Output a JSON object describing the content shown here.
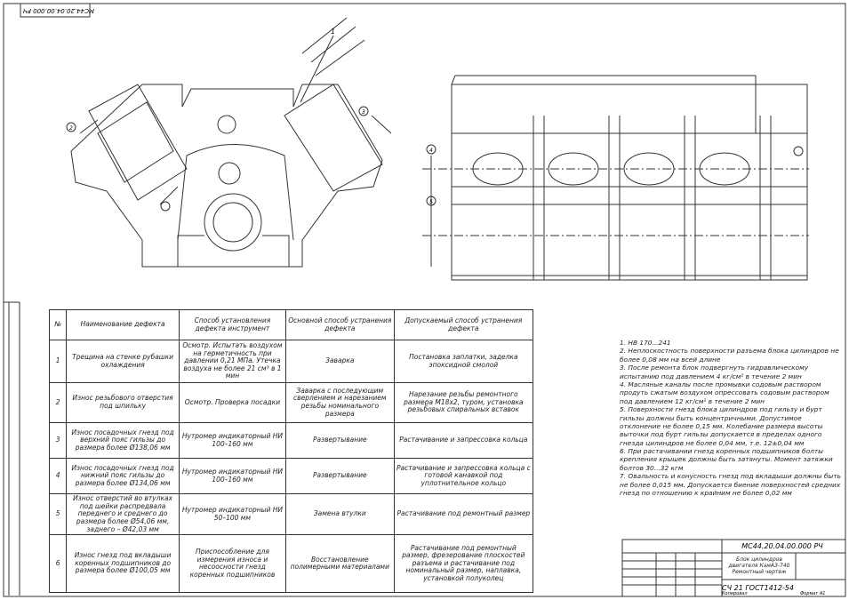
{
  "stamp": "МС44.20.04.00.000 РЧ",
  "drawing_labels": [
    "1",
    "2",
    "3",
    "4",
    "5"
  ],
  "table": {
    "header": [
      "№",
      "Наименование дефекта",
      "Способ установления дефекта инструмент",
      "Основной способ устранения дефекта",
      "Допускаемый способ устранения дефекта"
    ],
    "rows": [
      [
        "1",
        "Трещина на стенке рубашки охлаждения",
        "Осмотр. Испытать воздухом на герметичность при давлении 0,21 МПа. Утечка воздуха не более 21 см³ в 1 мин",
        "Заварка",
        "Постановка заплатки, заделка эпоксидной смолой"
      ],
      [
        "2",
        "Износ резьбового отверстия под шпильку",
        "Осмотр. Проверка посадки",
        "Заварка с последующим сверлением и нарезанием резьбы номинального размера",
        "Нарезание резьбы ремонтного размера М18х2, туром, установка резьбовых спиральных вставок"
      ],
      [
        "3",
        "Износ посадочных гнезд под верхний пояс гильзы до размера более Ø138,06 мм",
        "Нутромер индикаторный НИ 100–160 мм",
        "Развертывание",
        "Растачивание и запрессовка кольца"
      ],
      [
        "4",
        "Износ посадочных гнезд под нижний пояс гильзы до размера более Ø134,06 мм",
        "Нутромер индикаторный НИ 100–160 мм",
        "Развертывание",
        "Растачивание и запрессовка кольца с готовой канавкой под уплотнительное кольцо"
      ],
      [
        "5",
        "Износ отверстий во втулках под шейки распредвала переднего и среднего до размера более Ø54,06 мм, заднего – Ø42,03 мм",
        "Нутромер индикаторный НИ 50–100 мм",
        "Замена втулки",
        "Растачивание под ремонтный размер"
      ],
      [
        "6",
        "Износ гнезд под вкладыши коренных подшипников до размера более Ø100,05 мм",
        "Приспособление для измерения износа и несоосности гнезд коренных подшипников",
        "Восстановление полимерными материалами",
        "Растачивание под ремонтный размер, фрезерование плоскостей разъема и растачивание под номинальный размер, наплавка, установкой полуколец"
      ]
    ]
  },
  "notes": [
    "1. НВ 170...241",
    "2. Неплоскостность поверхности разъема блока цилиндров не более 0,08 мм на всей длине",
    "3. После ремонта блок подвергнуть гидравлическому испытанию под давлением 4 кг/см² в течение 2 мин",
    "4. Масляные каналы после промывки содовым раствором продуть сжатым воздухом опрессовать содовым раствором под давлением 12 кг/см² в течение 2 мин",
    "5. Поверхности гнезд блока цилиндров под гильзу и бурт гильзы должны быть концентричными. Допустимое отклонение не более 0,15 мм. Колебание размера высоты выточки под бурт гильзы допускается в пределах одного гнезда цилиндров не более 0,04 мм, т.е. 12±0,04 мм",
    "6. При растачивании гнезд коренных подшипников болты крепления крышек должны быть затянуты. Момент затяжки болтов 30...32 кгм",
    "7. Овальность и конусность гнезд под вкладыши должны быть не более 0,015 мм. Допускается биение поверхностей средних гнезд по отношению к крайним не более 0,02 мм"
  ],
  "title_block": {
    "code": "МС44.20.04.00.000 РЧ",
    "name": "Блок цилиндров двигателя КамАЗ-740 Ремонтный чертеж",
    "material": "СЧ 21 ГОСТ1412-54",
    "copied": "Копировал",
    "format": "Формат А1"
  }
}
